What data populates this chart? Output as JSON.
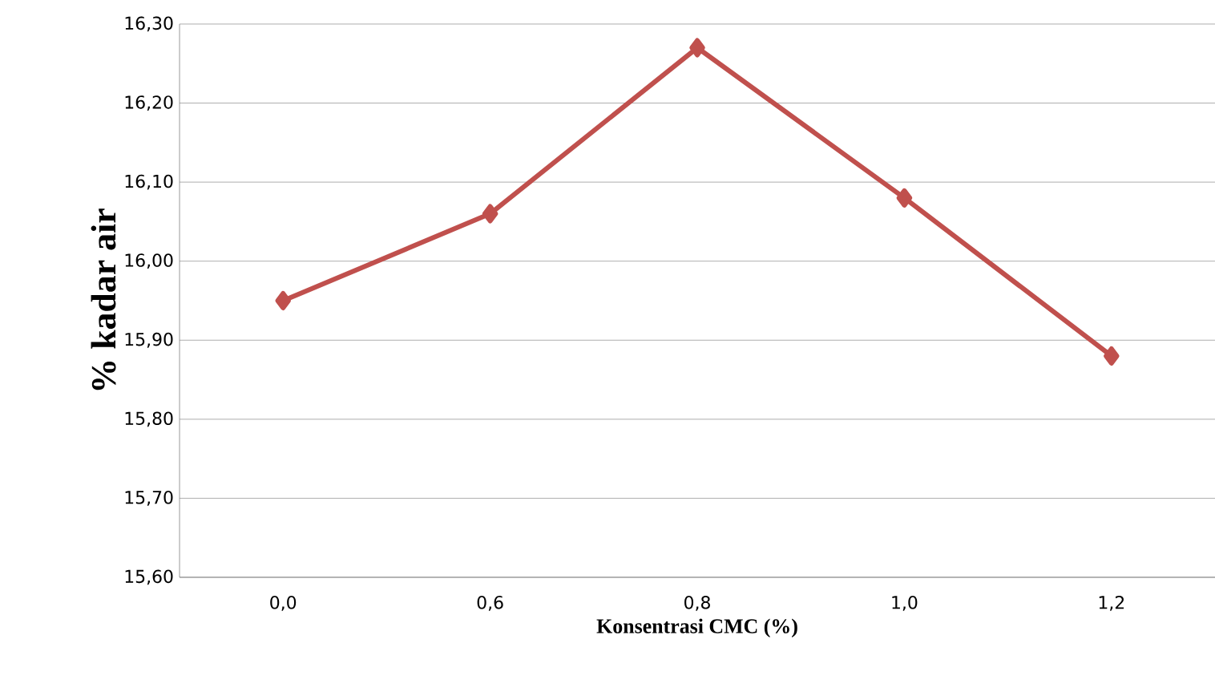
{
  "chart_data": {
    "type": "line",
    "xlabel": "Konsentrasi CMC (%)",
    "ylabel": "% kadar air",
    "categories": [
      "0,0",
      "0,6",
      "0,8",
      "1,0",
      "1,2"
    ],
    "series": [
      {
        "color": "#c0504d",
        "values": [
          15.95,
          16.06,
          16.27,
          16.08,
          15.88
        ]
      }
    ],
    "ylim": [
      15.6,
      16.3
    ],
    "yticks": [
      {
        "value": 15.6,
        "label": "15,60"
      },
      {
        "value": 15.7,
        "label": "15,70"
      },
      {
        "value": 15.8,
        "label": "15,80"
      },
      {
        "value": 15.9,
        "label": "15,90"
      },
      {
        "value": 16.0,
        "label": "16,00"
      },
      {
        "value": 16.1,
        "label": "16,10"
      },
      {
        "value": 16.2,
        "label": "16,20"
      },
      {
        "value": 16.3,
        "label": "16,30"
      }
    ],
    "grid": "y",
    "marker": "diamond",
    "line_style": "solid"
  }
}
